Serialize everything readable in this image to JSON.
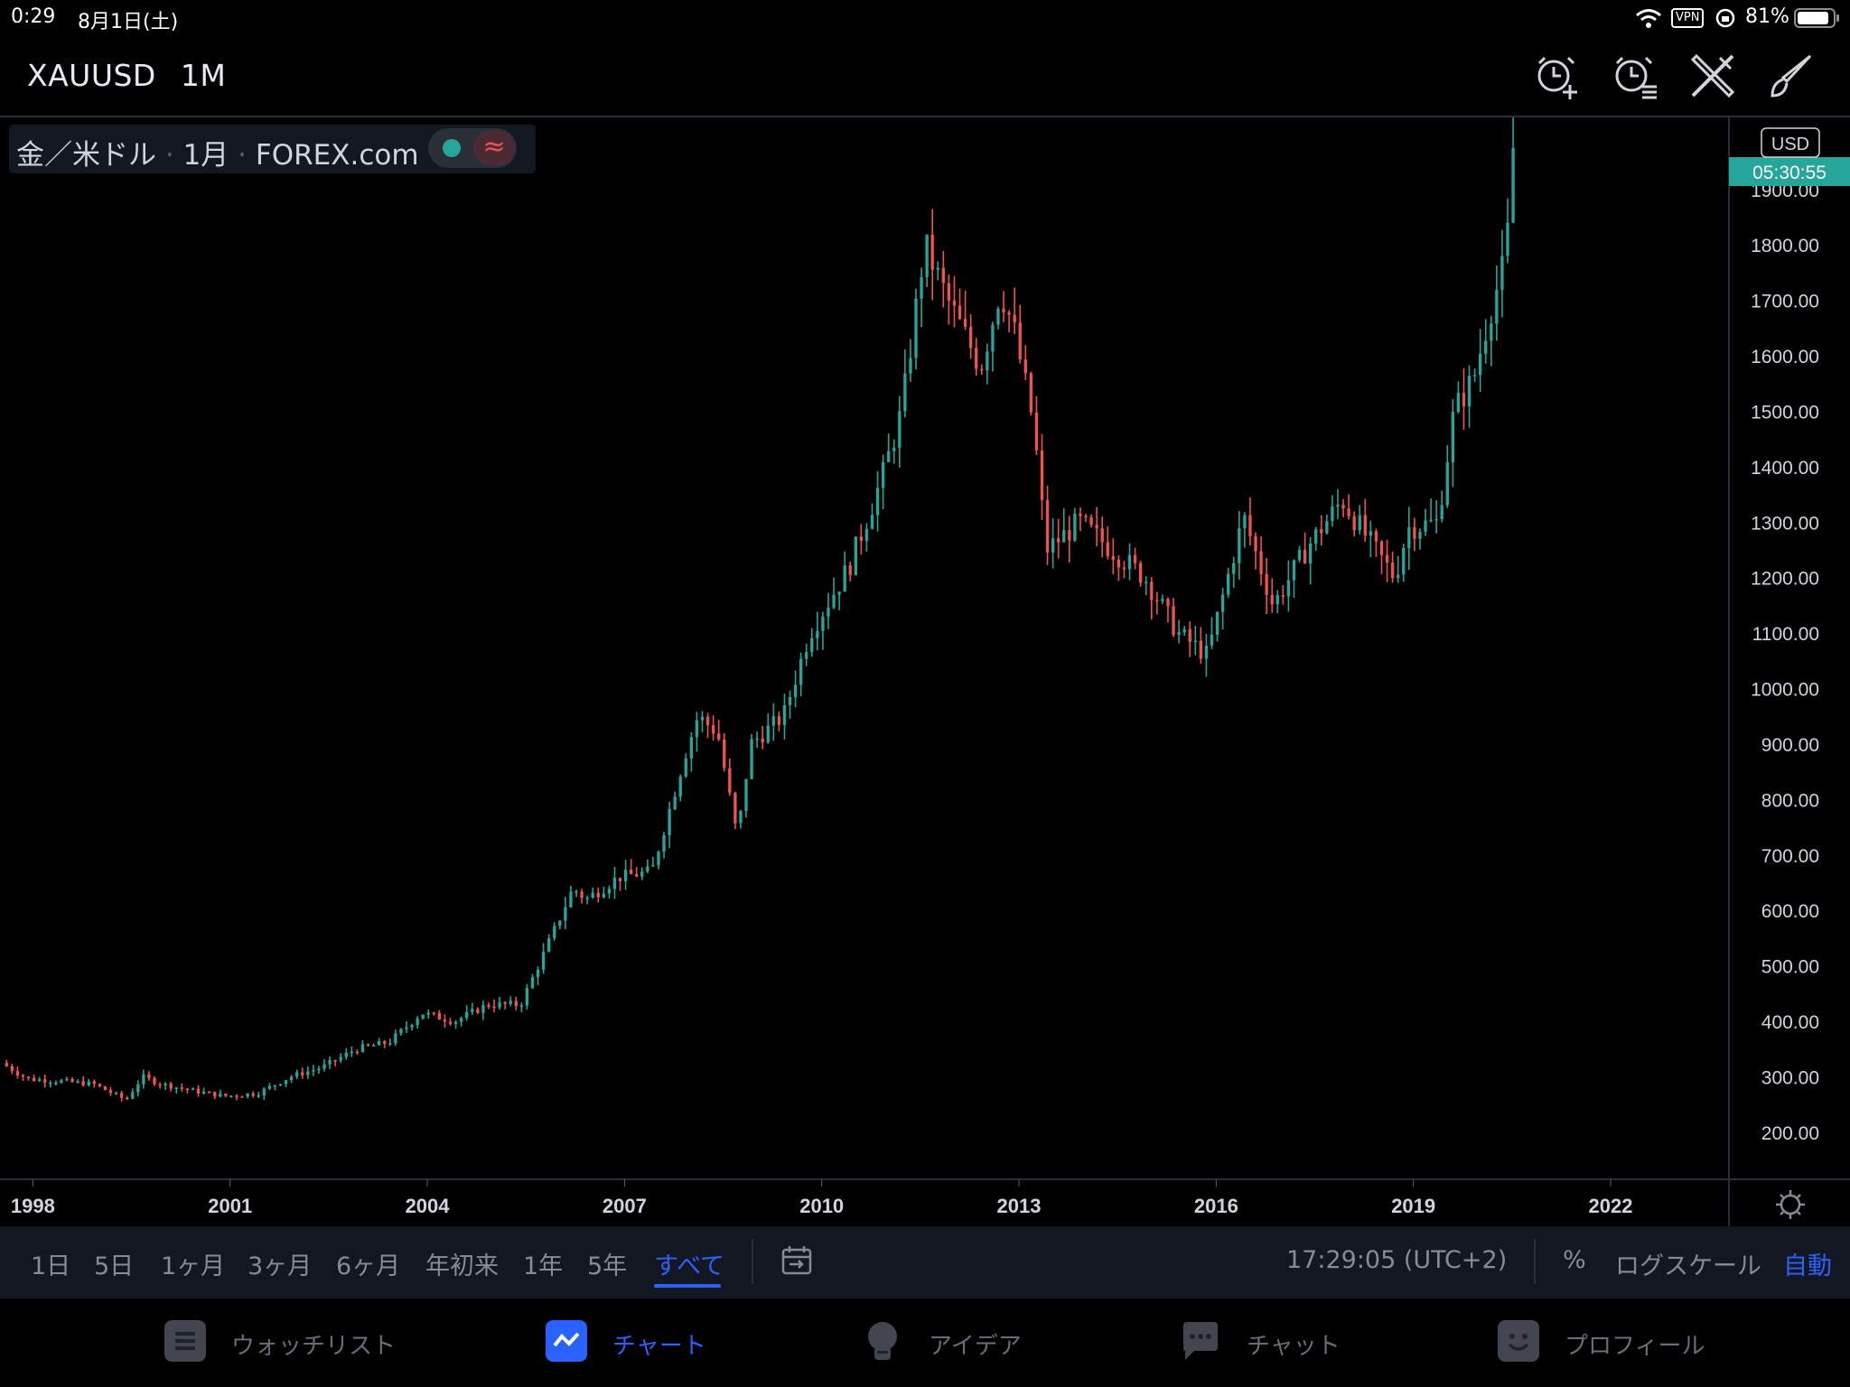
{
  "status_bar": {
    "time": "0:29",
    "date": "8月1日(土)",
    "vpn": "VPN",
    "battery": "81%"
  },
  "toolbar": {
    "symbol": "XAUUSD",
    "interval": "1M",
    "icons": [
      "alarm-plus-icon",
      "alarm-list-icon",
      "tools-icon",
      "brush-icon"
    ]
  },
  "legend": {
    "name": "金／米ドル",
    "interval": "1月",
    "source": "FOREX.com"
  },
  "price_axis": {
    "currency": "USD",
    "countdown": "05:30:55"
  },
  "colors": {
    "up": "#26a69a",
    "down": "#ef5350",
    "accent": "#2962ff"
  },
  "range_bar": {
    "items": [
      "1日",
      "5日",
      "1ヶ月",
      "3ヶ月",
      "6ヶ月",
      "年初来",
      "1年",
      "5年",
      "すべて"
    ],
    "active": "すべて",
    "time": "17:29:05 (UTC+2)",
    "percent": "%",
    "log": "ログスケール",
    "auto": "自動"
  },
  "bottom_nav": {
    "items": [
      "ウォッチリスト",
      "チャート",
      "アイデア",
      "チャット",
      "プロフィール"
    ],
    "active": "チャート"
  },
  "chart_data": {
    "type": "candlestick",
    "title": "",
    "xlabel": "",
    "ylabel": "",
    "x_ticks": [
      "1998",
      "2001",
      "2004",
      "2007",
      "2010",
      "2013",
      "2016",
      "2019",
      "2022"
    ],
    "y_ticks": [
      "1900.00",
      "1800.00",
      "1700.00",
      "1600.00",
      "1500.00",
      "1400.00",
      "1300.00",
      "1200.00",
      "1100.00",
      "1000.00",
      "900.00",
      "800.00",
      "700.00",
      "600.00",
      "500.00",
      "400.00",
      "300.00",
      "200.00"
    ],
    "ylim": [
      115,
      2030
    ],
    "x_range": [
      1997.5,
      2023.8
    ],
    "series": [
      {
        "x": [
          1997.6,
          1998.0,
          1998.5,
          1999.0,
          1999.5,
          1999.75,
          2000.0,
          2000.5,
          2001.0,
          2001.5,
          2002.0,
          2002.5,
          2003.0,
          2003.5,
          2004.0,
          2004.5,
          2005.0,
          2005.5,
          2006.0,
          2006.3,
          2006.5,
          2007.0,
          2007.5,
          2008.0,
          2008.2,
          2008.5,
          2008.8,
          2009.0,
          2009.5,
          2009.9,
          2010.5,
          2011.0,
          2011.3,
          2011.65,
          2012.0,
          2012.5,
          2012.8,
          2013.0,
          2013.3,
          2013.5,
          2014.0,
          2014.5,
          2015.0,
          2015.5,
          2015.95,
          2016.5,
          2016.95,
          2017.5,
          2018.0,
          2018.5,
          2018.8,
          2019.0,
          2019.45,
          2019.7,
          2020.0,
          2020.25,
          2020.5,
          2020.58
        ],
        "y": [
          325,
          296,
          292,
          287,
          258,
          300,
          288,
          275,
          265,
          270,
          300,
          318,
          350,
          362,
          415,
          400,
          430,
          430,
          560,
          640,
          620,
          660,
          670,
          880,
          950,
          920,
          730,
          900,
          950,
          1100,
          1220,
          1380,
          1500,
          1800,
          1700,
          1580,
          1720,
          1650,
          1480,
          1250,
          1300,
          1250,
          1200,
          1100,
          1060,
          1310,
          1150,
          1260,
          1340,
          1250,
          1200,
          1290,
          1300,
          1500,
          1560,
          1680,
          1780,
          1975
        ]
      }
    ]
  }
}
